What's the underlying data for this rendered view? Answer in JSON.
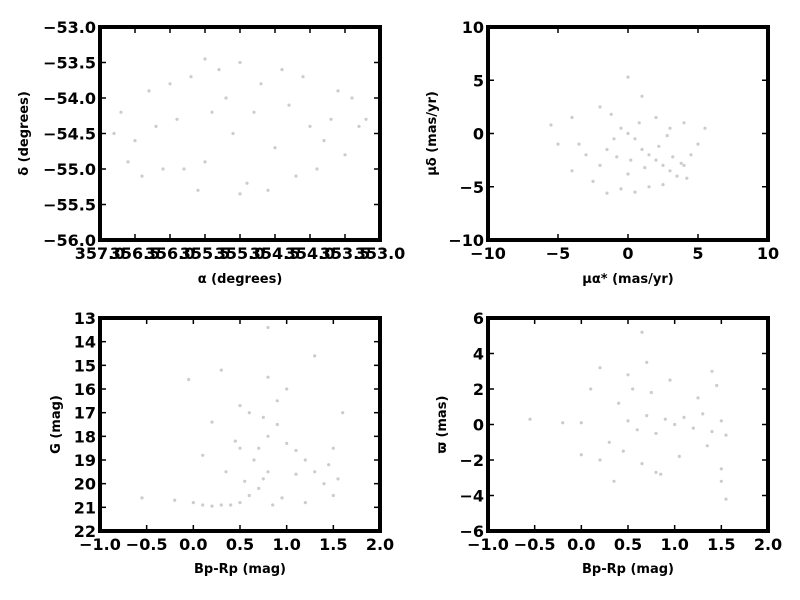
{
  "chart_data": [
    {
      "id": "sky",
      "type": "scatter",
      "xlabel": "α (degrees)",
      "ylabel": "δ (degrees)",
      "xlim": [
        357.0,
        353.0
      ],
      "ylim": [
        -56.0,
        -53.0
      ],
      "xticks": [
        357.0,
        356.5,
        356.0,
        355.5,
        355.0,
        354.5,
        354.0,
        353.5,
        353.0
      ],
      "xtick_labels": [
        "357.0",
        "356.5",
        "356.0",
        "355.5",
        "355.0",
        "354.5",
        "354.0",
        "353.5",
        "353.0"
      ],
      "yticks": [
        -53.0,
        -53.5,
        -54.0,
        -54.5,
        -55.0,
        -55.5,
        -56.0
      ],
      "ytick_labels": [
        "−53.0",
        "−53.5",
        "−54.0",
        "−54.5",
        "−55.0",
        "−55.5",
        "−56.0"
      ],
      "points": [
        [
          356.7,
          -54.2
        ],
        [
          356.5,
          -54.6
        ],
        [
          356.3,
          -53.9
        ],
        [
          356.1,
          -55.0
        ],
        [
          355.9,
          -54.3
        ],
        [
          355.7,
          -53.7
        ],
        [
          355.5,
          -54.9
        ],
        [
          355.3,
          -53.6
        ],
        [
          355.1,
          -54.5
        ],
        [
          354.9,
          -55.2
        ],
        [
          354.7,
          -53.8
        ],
        [
          354.5,
          -54.7
        ],
        [
          354.3,
          -54.1
        ],
        [
          354.1,
          -53.7
        ],
        [
          353.9,
          -55.0
        ],
        [
          353.7,
          -54.3
        ],
        [
          353.5,
          -54.8
        ],
        [
          353.3,
          -54.4
        ],
        [
          356.6,
          -54.9
        ],
        [
          356.0,
          -53.8
        ],
        [
          355.6,
          -55.3
        ],
        [
          355.0,
          -53.5
        ],
        [
          354.6,
          -55.3
        ],
        [
          354.0,
          -54.4
        ],
        [
          353.6,
          -53.9
        ],
        [
          356.2,
          -54.4
        ],
        [
          355.8,
          -55.0
        ],
        [
          355.2,
          -54.0
        ],
        [
          354.8,
          -54.2
        ],
        [
          354.2,
          -55.1
        ],
        [
          353.8,
          -54.6
        ],
        [
          356.4,
          -55.1
        ],
        [
          355.4,
          -54.2
        ],
        [
          354.4,
          -53.6
        ],
        [
          353.4,
          -54.0
        ],
        [
          355.5,
          -53.45
        ],
        [
          355.0,
          -55.35
        ],
        [
          356.8,
          -54.5
        ],
        [
          353.2,
          -54.3
        ]
      ],
      "point_color": "#cccccc"
    },
    {
      "id": "pm",
      "type": "scatter",
      "xlabel": "μα* (mas/yr)",
      "ylabel": "μδ (mas/yr)",
      "xlim": [
        -10,
        10
      ],
      "ylim": [
        -10,
        10
      ],
      "xticks": [
        -10,
        -5,
        0,
        5,
        10
      ],
      "xtick_labels": [
        "−10",
        "−5",
        "0",
        "5",
        "10"
      ],
      "yticks": [
        -10,
        -5,
        0,
        5,
        10
      ],
      "ytick_labels": [
        "−10",
        "−5",
        "0",
        "5",
        "10"
      ],
      "points": [
        [
          0.0,
          0.0
        ],
        [
          0.5,
          -0.5
        ],
        [
          1.0,
          -1.5
        ],
        [
          1.5,
          -2.0
        ],
        [
          2.0,
          -2.5
        ],
        [
          2.5,
          -3.0
        ],
        [
          3.0,
          -3.5
        ],
        [
          3.5,
          -4.0
        ],
        [
          4.0,
          -3.0
        ],
        [
          4.5,
          -2.0
        ],
        [
          5.0,
          -1.0
        ],
        [
          5.5,
          0.5
        ],
        [
          -0.5,
          0.5
        ],
        [
          -1.0,
          -0.5
        ],
        [
          -1.5,
          -1.5
        ],
        [
          -2.0,
          -3.0
        ],
        [
          -2.5,
          -4.5
        ],
        [
          -3.0,
          -2.0
        ],
        [
          -3.5,
          -1.0
        ],
        [
          -4.0,
          -3.5
        ],
        [
          -5.0,
          -1.0
        ],
        [
          -5.5,
          0.8
        ],
        [
          -4.0,
          1.5
        ],
        [
          -2.0,
          2.5
        ],
        [
          0.0,
          5.3
        ],
        [
          1.0,
          3.5
        ],
        [
          2.0,
          1.5
        ],
        [
          3.0,
          0.5
        ],
        [
          4.0,
          1.0
        ],
        [
          0.5,
          -5.5
        ],
        [
          1.5,
          -5.0
        ],
        [
          2.5,
          -4.8
        ],
        [
          -0.5,
          -5.2
        ],
        [
          -1.5,
          -5.6
        ],
        [
          0.2,
          -2.5
        ],
        [
          1.2,
          -3.2
        ],
        [
          2.2,
          -1.2
        ],
        [
          3.2,
          -2.2
        ],
        [
          4.2,
          -4.2
        ],
        [
          0.8,
          1.0
        ],
        [
          -0.8,
          -2.2
        ],
        [
          -1.2,
          1.8
        ],
        [
          2.8,
          -0.2
        ],
        [
          0.0,
          -3.8
        ],
        [
          3.8,
          -2.8
        ]
      ],
      "point_color": "#cccccc"
    },
    {
      "id": "cmd",
      "type": "scatter",
      "xlabel": "Bp-Rp  (mag)",
      "ylabel": "G (mag)",
      "xlim": [
        -1.0,
        2.0
      ],
      "ylim": [
        22,
        13
      ],
      "xticks": [
        -1.0,
        -0.5,
        0.0,
        0.5,
        1.0,
        1.5,
        2.0
      ],
      "xtick_labels": [
        "−1.0",
        "−0.5",
        "0.0",
        "0.5",
        "1.0",
        "1.5",
        "2.0"
      ],
      "yticks": [
        22,
        21,
        20,
        19,
        18,
        17,
        16,
        15,
        14,
        13
      ],
      "ytick_labels": [
        "22",
        "21",
        "20",
        "19",
        "18",
        "17",
        "16",
        "15",
        "14",
        "13"
      ],
      "points": [
        [
          0.5,
          20.8
        ],
        [
          0.6,
          20.5
        ],
        [
          0.7,
          20.2
        ],
        [
          0.75,
          19.8
        ],
        [
          0.8,
          19.5
        ],
        [
          0.65,
          19.0
        ],
        [
          0.7,
          18.5
        ],
        [
          0.8,
          18.0
        ],
        [
          0.9,
          17.5
        ],
        [
          0.75,
          17.2
        ],
        [
          1.0,
          18.3
        ],
        [
          1.1,
          18.6
        ],
        [
          1.2,
          19.0
        ],
        [
          1.3,
          19.5
        ],
        [
          1.4,
          20.0
        ],
        [
          1.5,
          20.5
        ],
        [
          1.55,
          19.8
        ],
        [
          0.4,
          20.9
        ],
        [
          0.3,
          20.9
        ],
        [
          0.2,
          20.95
        ],
        [
          0.1,
          20.9
        ],
        [
          0.0,
          20.8
        ],
        [
          -0.2,
          20.7
        ],
        [
          -0.55,
          20.6
        ],
        [
          0.35,
          19.5
        ],
        [
          0.5,
          18.5
        ],
        [
          0.6,
          17.0
        ],
        [
          0.9,
          16.5
        ],
        [
          1.0,
          16.0
        ],
        [
          0.8,
          15.5
        ],
        [
          1.3,
          14.6
        ],
        [
          0.3,
          15.2
        ],
        [
          -0.05,
          15.6
        ],
        [
          0.8,
          13.4
        ],
        [
          1.6,
          17.0
        ],
        [
          0.5,
          16.7
        ],
        [
          1.5,
          18.5
        ],
        [
          1.2,
          20.8
        ],
        [
          0.95,
          20.6
        ],
        [
          0.55,
          19.9
        ],
        [
          0.85,
          20.9
        ],
        [
          1.1,
          19.6
        ],
        [
          0.45,
          18.2
        ],
        [
          0.2,
          17.4
        ],
        [
          0.1,
          18.8
        ],
        [
          1.45,
          19.2
        ]
      ],
      "point_color": "#cccccc"
    },
    {
      "id": "plx",
      "type": "scatter",
      "xlabel": "Bp-Rp  (mag)",
      "ylabel": "ϖ (mas)",
      "xlim": [
        -1.0,
        2.0
      ],
      "ylim": [
        -6,
        6
      ],
      "xticks": [
        -1.0,
        -0.5,
        0.0,
        0.5,
        1.0,
        1.5,
        2.0
      ],
      "xtick_labels": [
        "−1.0",
        "−0.5",
        "0.0",
        "0.5",
        "1.0",
        "1.5",
        "2.0"
      ],
      "yticks": [
        -6,
        -4,
        -2,
        0,
        2,
        4,
        6
      ],
      "ytick_labels": [
        "−6",
        "−4",
        "−2",
        "0",
        "2",
        "4",
        "6"
      ],
      "points": [
        [
          0.5,
          0.2
        ],
        [
          0.6,
          -0.3
        ],
        [
          0.7,
          0.5
        ],
        [
          0.8,
          -0.5
        ],
        [
          0.9,
          0.3
        ],
        [
          1.0,
          0.0
        ],
        [
          1.1,
          0.4
        ],
        [
          1.2,
          -0.2
        ],
        [
          1.3,
          0.6
        ],
        [
          1.4,
          -0.4
        ],
        [
          1.5,
          0.2
        ],
        [
          1.55,
          -0.6
        ],
        [
          0.4,
          1.2
        ],
        [
          0.45,
          -1.5
        ],
        [
          0.55,
          2.0
        ],
        [
          0.65,
          -2.2
        ],
        [
          0.75,
          1.8
        ],
        [
          0.85,
          -2.8
        ],
        [
          0.95,
          2.5
        ],
        [
          1.05,
          -1.8
        ],
        [
          1.25,
          1.5
        ],
        [
          1.35,
          -1.2
        ],
        [
          1.45,
          2.2
        ],
        [
          1.5,
          -2.5
        ],
        [
          0.3,
          -1.0
        ],
        [
          0.2,
          -2.0
        ],
        [
          0.1,
          2.0
        ],
        [
          0.0,
          0.1
        ],
        [
          -0.2,
          0.1
        ],
        [
          -0.55,
          0.3
        ],
        [
          0.0,
          -1.7
        ],
        [
          0.65,
          5.2
        ],
        [
          0.7,
          3.5
        ],
        [
          1.4,
          3.0
        ],
        [
          1.55,
          -4.2
        ],
        [
          1.5,
          -3.2
        ],
        [
          0.35,
          -3.2
        ],
        [
          0.8,
          -2.7
        ],
        [
          0.2,
          3.2
        ],
        [
          0.5,
          2.8
        ]
      ],
      "point_color": "#cccccc"
    }
  ]
}
